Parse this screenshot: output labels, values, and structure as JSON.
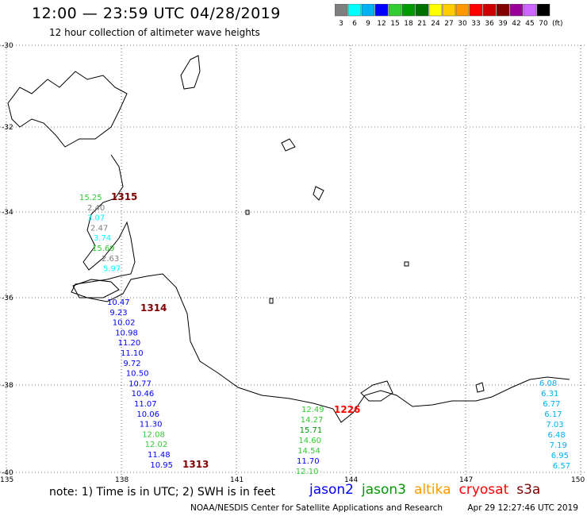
{
  "header": {
    "title": "12:00 — 23:59 UTC 04/28/2019",
    "subtitle": "12 hour collection of altimeter wave heights"
  },
  "legend": {
    "unit": "(ft)",
    "bins": [
      {
        "label": "3",
        "color": "#7f7f7f"
      },
      {
        "label": "6",
        "color": "#00ffff"
      },
      {
        "label": "9",
        "color": "#00b0f0"
      },
      {
        "label": "12",
        "color": "#0000ff"
      },
      {
        "label": "15",
        "color": "#33cc33"
      },
      {
        "label": "18",
        "color": "#009900"
      },
      {
        "label": "21",
        "color": "#007000"
      },
      {
        "label": "24",
        "color": "#ffff00"
      },
      {
        "label": "27",
        "color": "#ffcc00"
      },
      {
        "label": "30",
        "color": "#ff9900"
      },
      {
        "label": "33",
        "color": "#ff0000"
      },
      {
        "label": "36",
        "color": "#cc0000"
      },
      {
        "label": "39",
        "color": "#800000"
      },
      {
        "label": "42",
        "color": "#990099"
      },
      {
        "label": "45",
        "color": "#cc66ff"
      },
      {
        "label": "70",
        "color": "#000000"
      }
    ]
  },
  "axes": {
    "lat_labels": [
      "-30",
      "-32",
      "-34",
      "-36",
      "-38",
      "-40"
    ],
    "lon_labels": [
      "135",
      "138",
      "141",
      "144",
      "147",
      "150"
    ]
  },
  "tracks": [
    {
      "time": "1315",
      "time_color": "#800000",
      "values": [
        {
          "v": "15.25",
          "c": "#33cc33"
        },
        {
          "v": "2.40",
          "c": "#7f7f7f"
        },
        {
          "v": "3.07",
          "c": "#00ffff"
        },
        {
          "v": "2.47",
          "c": "#7f7f7f"
        },
        {
          "v": "3.74",
          "c": "#00ffff"
        },
        {
          "v": "15.69",
          "c": "#33cc33"
        },
        {
          "v": "2.63",
          "c": "#7f7f7f"
        },
        {
          "v": "5.97",
          "c": "#00ffff"
        }
      ]
    },
    {
      "time": "1314",
      "time_color": "#800000",
      "values": [
        {
          "v": "10.47",
          "c": "#0000ff"
        },
        {
          "v": "9.23",
          "c": "#0000ff"
        },
        {
          "v": "10.02",
          "c": "#0000ff"
        },
        {
          "v": "10.98",
          "c": "#0000ff"
        },
        {
          "v": "11.20",
          "c": "#0000ff"
        },
        {
          "v": "11.10",
          "c": "#0000ff"
        },
        {
          "v": "9.72",
          "c": "#0000ff"
        },
        {
          "v": "10.50",
          "c": "#0000ff"
        },
        {
          "v": "10.77",
          "c": "#0000ff"
        },
        {
          "v": "10.46",
          "c": "#0000ff"
        },
        {
          "v": "11.07",
          "c": "#0000ff"
        },
        {
          "v": "10.06",
          "c": "#0000ff"
        },
        {
          "v": "11.30",
          "c": "#0000ff"
        },
        {
          "v": "12.08",
          "c": "#33cc33"
        },
        {
          "v": "12.02",
          "c": "#33cc33"
        },
        {
          "v": "11.48",
          "c": "#0000ff"
        },
        {
          "v": "10.95",
          "c": "#0000ff"
        }
      ]
    },
    {
      "time": "1313",
      "time_color": "#800000",
      "values": []
    },
    {
      "time": "1226",
      "time_color": "#ff0000",
      "values": [
        {
          "v": "12.49",
          "c": "#33cc33"
        },
        {
          "v": "14.27",
          "c": "#33cc33"
        },
        {
          "v": "15.71",
          "c": "#009900"
        },
        {
          "v": "14.60",
          "c": "#33cc33"
        },
        {
          "v": "14.54",
          "c": "#33cc33"
        },
        {
          "v": "11.70",
          "c": "#0000ff"
        },
        {
          "v": "12.10",
          "c": "#33cc33"
        }
      ]
    },
    {
      "time": "",
      "time_color": "#00b0f0",
      "values": [
        {
          "v": "6.08",
          "c": "#00b0f0"
        },
        {
          "v": "6.31",
          "c": "#00b0f0"
        },
        {
          "v": "6.77",
          "c": "#00b0f0"
        },
        {
          "v": "6.17",
          "c": "#00b0f0"
        },
        {
          "v": "7.03",
          "c": "#00b0f0"
        },
        {
          "v": "6.48",
          "c": "#00b0f0"
        },
        {
          "v": "7.19",
          "c": "#00b0f0"
        },
        {
          "v": "6.95",
          "c": "#00b0f0"
        },
        {
          "v": "6.57",
          "c": "#00b0f0"
        }
      ]
    }
  ],
  "notes": {
    "note": "note:  1) Time is in UTC;  2) SWH is in feet",
    "satellites": [
      {
        "name": "jason2",
        "color": "#0000ff"
      },
      {
        "name": "jason3",
        "color": "#009900"
      },
      {
        "name": "altika",
        "color": "#ff9900"
      },
      {
        "name": "cryosat",
        "color": "#ff0000"
      },
      {
        "name": "s3a",
        "color": "#800000"
      }
    ],
    "credit": "NOAA/NESDIS Center for Satellite Applications and Research",
    "timestamp": "Apr 29 12:27:46 UTC 2019"
  }
}
